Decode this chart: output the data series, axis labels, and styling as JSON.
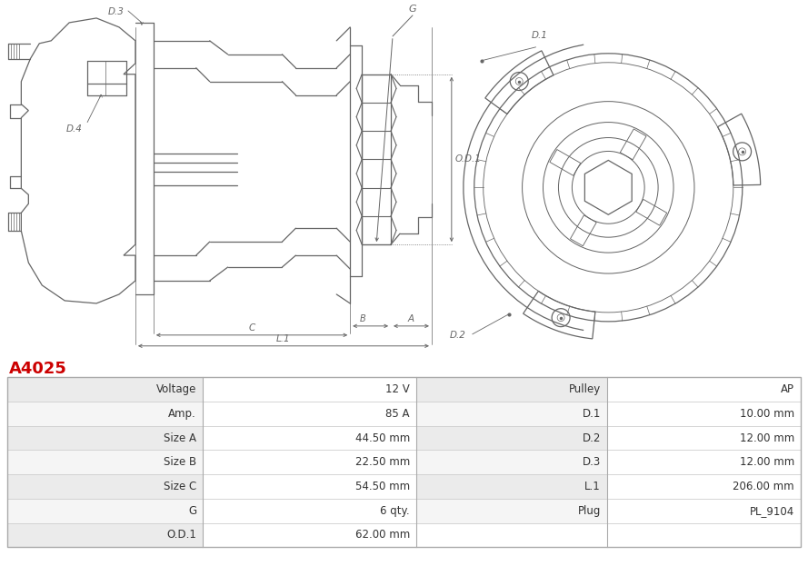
{
  "title": "A4025",
  "title_color": "#cc0000",
  "bg_color": "#ffffff",
  "table_rows": [
    [
      "Voltage",
      "12 V",
      "Pulley",
      "AP"
    ],
    [
      "Amp.",
      "85 A",
      "D.1",
      "10.00 mm"
    ],
    [
      "Size A",
      "44.50 mm",
      "D.2",
      "12.00 mm"
    ],
    [
      "Size B",
      "22.50 mm",
      "D.3",
      "12.00 mm"
    ],
    [
      "Size C",
      "54.50 mm",
      "L.1",
      "206.00 mm"
    ],
    [
      "G",
      "6 qty.",
      "Plug",
      "PL_9104"
    ],
    [
      "O.D.1",
      "62.00 mm",
      "",
      ""
    ]
  ],
  "row_bg_odd": "#ebebeb",
  "row_bg_even": "#f5f5f5",
  "border_color": "#cccccc",
  "text_color": "#333333",
  "lc": "#666666",
  "dim_color": "#666666"
}
